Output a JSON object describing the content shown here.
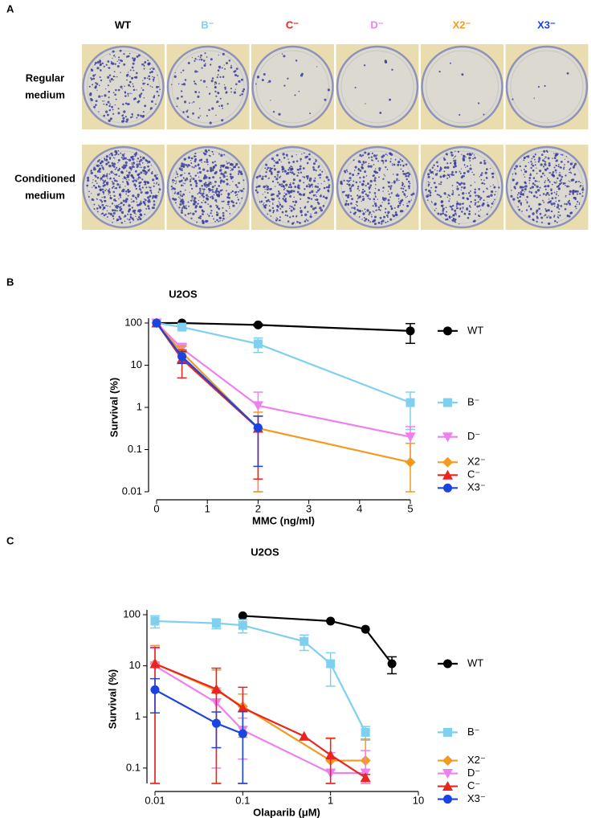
{
  "panel_labels": [
    "A",
    "B",
    "C"
  ],
  "panel_a": {
    "columns": [
      {
        "label": "WT",
        "color": "#000000"
      },
      {
        "label": "B⁻",
        "color": "#7fd0ef"
      },
      {
        "label": "C⁻",
        "color": "#e8251e"
      },
      {
        "label": "D⁻",
        "color": "#ef7fef"
      },
      {
        "label": "X2⁻",
        "color": "#f39a1f"
      },
      {
        "label": "X3⁻",
        "color": "#1a44e0"
      }
    ],
    "rows": [
      [
        "Regular",
        "medium"
      ],
      [
        "Conditioned",
        "medium"
      ]
    ]
  },
  "chart_data": [
    {
      "type": "line",
      "title": "U2OS",
      "x_label": "MMC (ng/ml)",
      "y_label": "Survival (%)",
      "xlim": [
        0,
        5
      ],
      "xticks": [
        0,
        1,
        2,
        3,
        4,
        5
      ],
      "ylim": [
        0.01,
        100
      ],
      "yticks": [
        0.01,
        0.1,
        1,
        10,
        100
      ],
      "y_log": true,
      "x_log": false,
      "series": [
        {
          "name": "WT",
          "color": "#000000",
          "marker": "circle",
          "x": [
            0,
            0.5,
            2,
            5
          ],
          "values": [
            100,
            100,
            90,
            65
          ],
          "errors": [
            null,
            null,
            5,
            32
          ]
        },
        {
          "name": "B⁻",
          "color": "#7fd0ef",
          "marker": "square",
          "x": [
            0,
            0.5,
            2,
            5
          ],
          "values": [
            100,
            80,
            32,
            1.3
          ],
          "errors": [
            null,
            10,
            12,
            1.0
          ]
        },
        {
          "name": "D⁻",
          "color": "#ef7fef",
          "marker": "triangle-down",
          "x": [
            0,
            0.5,
            2,
            5
          ],
          "values": [
            100,
            25,
            1.1,
            0.2
          ],
          "errors": [
            null,
            8,
            1.2,
            0.15
          ]
        },
        {
          "name": "X2⁻",
          "color": "#f39a1f",
          "marker": "diamond",
          "x": [
            0,
            0.5,
            2,
            5
          ],
          "values": [
            100,
            20,
            0.32,
            0.05
          ],
          "errors": [
            null,
            8,
            0.45,
            0.09
          ]
        },
        {
          "name": "C⁻",
          "color": "#e8251e",
          "marker": "triangle-up",
          "x": [
            0,
            0.5,
            2,
            5
          ],
          "values": [
            100,
            14,
            0.32,
            null
          ],
          "errors": [
            null,
            9,
            0.3,
            null
          ]
        },
        {
          "name": "X3⁻",
          "color": "#1a44e0",
          "marker": "circle",
          "x": [
            0,
            0.5,
            2,
            5
          ],
          "values": [
            100,
            16,
            0.33,
            null
          ],
          "errors": [
            null,
            5,
            0.29,
            null
          ]
        }
      ]
    },
    {
      "type": "line",
      "title": "U2OS",
      "x_label": "Olaparib (μM)",
      "y_label": "Survival (%)",
      "xlim": [
        0.01,
        10
      ],
      "xticks": [
        0.01,
        0.1,
        1,
        10
      ],
      "ylim": [
        0.05,
        100
      ],
      "yticks": [
        0.1,
        1,
        10,
        100
      ],
      "y_log": true,
      "x_log": true,
      "series": [
        {
          "name": "WT",
          "color": "#000000",
          "marker": "circle",
          "x": [
            0.1,
            1,
            2.5,
            5
          ],
          "values": [
            95,
            75,
            52,
            11
          ],
          "errors": [
            null,
            null,
            null,
            4
          ]
        },
        {
          "name": "B⁻",
          "color": "#7fd0ef",
          "marker": "square",
          "x": [
            0.01,
            0.05,
            0.1,
            0.5,
            1,
            2.5
          ],
          "values": [
            75,
            68,
            62,
            30,
            11,
            0.5
          ],
          "errors": [
            20,
            15,
            18,
            10,
            7,
            0.15
          ]
        },
        {
          "name": "X2⁻",
          "color": "#f39a1f",
          "marker": "diamond",
          "x": [
            0.01,
            0.05,
            0.1,
            1,
            2.5
          ],
          "values": [
            11,
            3.3,
            1.6,
            0.14,
            0.14
          ],
          "errors": [
            14,
            5,
            1.2,
            0.25,
            0.23
          ]
        },
        {
          "name": "D⁻",
          "color": "#ef7fef",
          "marker": "triangle-down",
          "x": [
            0.01,
            0.05,
            0.1,
            1,
            2.5
          ],
          "values": [
            10,
            1.9,
            0.55,
            0.08,
            0.08
          ],
          "errors": [
            12,
            1.8,
            0.4,
            0.12,
            0.14
          ]
        },
        {
          "name": "C⁻",
          "color": "#e8251e",
          "marker": "triangle-up",
          "x": [
            0.01,
            0.05,
            0.1,
            0.5,
            1,
            2.5
          ],
          "values": [
            11,
            3.5,
            1.5,
            0.42,
            0.18,
            0.065
          ],
          "errors": [
            12,
            5.5,
            2.3,
            null,
            0.2,
            0.01
          ]
        },
        {
          "name": "X3⁻",
          "color": "#1a44e0",
          "marker": "circle",
          "x": [
            0.01,
            0.05,
            0.1
          ],
          "values": [
            3.4,
            0.75,
            0.47
          ],
          "errors": [
            2.2,
            0.5,
            0.8
          ]
        }
      ]
    }
  ]
}
